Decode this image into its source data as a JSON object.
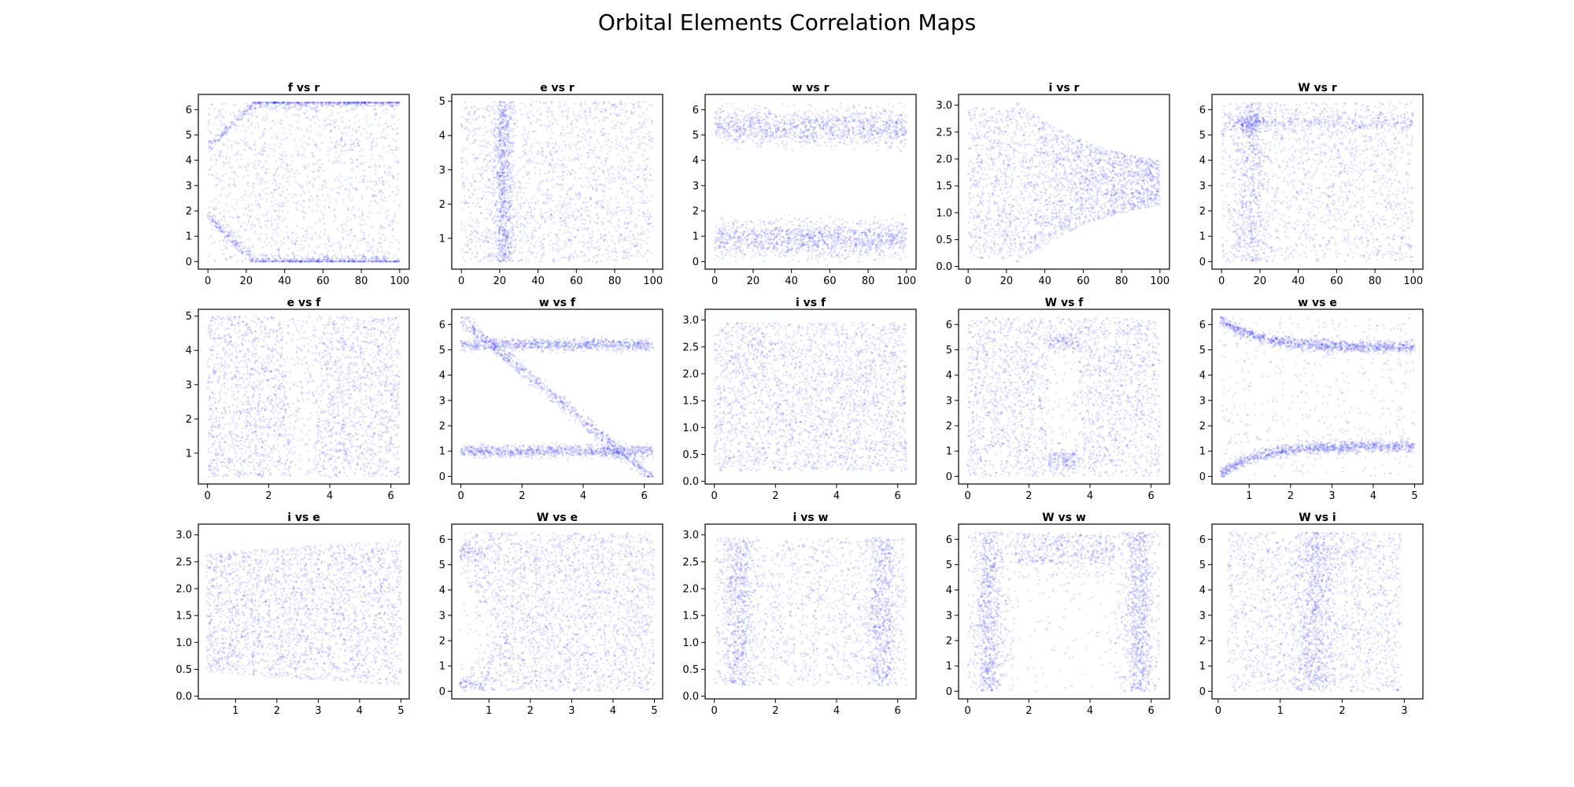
{
  "figure": {
    "title": "Orbital Elements Correlation Maps",
    "point_color": "#0000ee"
  },
  "chart_data": [
    {
      "type": "scatter",
      "title": "f vs r",
      "xlim": [
        -5,
        105
      ],
      "ylim": [
        -0.3,
        6.6
      ],
      "xticks": [
        0,
        20,
        40,
        60,
        80,
        100
      ],
      "yticks": [
        0,
        1,
        2,
        3,
        4,
        5,
        6
      ],
      "x_range": [
        0,
        100
      ],
      "y_range": [
        0,
        6.28
      ],
      "pattern": "fr"
    },
    {
      "type": "scatter",
      "title": "e vs r",
      "xlim": [
        -5,
        105
      ],
      "ylim": [
        0.1,
        5.2
      ],
      "xticks": [
        0,
        20,
        40,
        60,
        80,
        100
      ],
      "yticks": [
        1,
        2,
        3,
        4,
        5
      ],
      "x_range": [
        0,
        100
      ],
      "y_range": [
        0.3,
        5
      ],
      "pattern": "er"
    },
    {
      "type": "scatter",
      "title": "w vs r",
      "xlim": [
        -5,
        105
      ],
      "ylim": [
        -0.3,
        6.6
      ],
      "xticks": [
        0,
        20,
        40,
        60,
        80,
        100
      ],
      "yticks": [
        0,
        1,
        2,
        3,
        4,
        5,
        6
      ],
      "x_range": [
        0,
        100
      ],
      "y_range": [
        0,
        6.28
      ],
      "pattern": "wr"
    },
    {
      "type": "scatter",
      "title": "i vs r",
      "xlim": [
        -5,
        105
      ],
      "ylim": [
        -0.05,
        3.2
      ],
      "xticks": [
        0,
        20,
        40,
        60,
        80,
        100
      ],
      "yticks": [
        0.0,
        0.5,
        1.0,
        1.5,
        2.0,
        2.5,
        3.0
      ],
      "tick_decimals": 1,
      "x_range": [
        0,
        100
      ],
      "y_range": [
        0.1,
        3.05
      ],
      "pattern": "ir"
    },
    {
      "type": "scatter",
      "title": "W vs r",
      "xlim": [
        -5,
        105
      ],
      "ylim": [
        -0.3,
        6.6
      ],
      "xticks": [
        0,
        20,
        40,
        60,
        80,
        100
      ],
      "yticks": [
        0,
        1,
        2,
        3,
        4,
        5,
        6
      ],
      "x_range": [
        0,
        100
      ],
      "y_range": [
        0,
        6.28
      ],
      "pattern": "Wr"
    },
    {
      "type": "scatter",
      "title": "e vs f",
      "xlim": [
        -0.3,
        6.6
      ],
      "ylim": [
        0.1,
        5.2
      ],
      "xticks": [
        0,
        2,
        4,
        6
      ],
      "yticks": [
        1,
        2,
        3,
        4,
        5
      ],
      "x_range": [
        0,
        6.28
      ],
      "y_range": [
        0.3,
        5
      ],
      "pattern": "ef"
    },
    {
      "type": "scatter",
      "title": "w vs f",
      "xlim": [
        -0.3,
        6.6
      ],
      "ylim": [
        -0.3,
        6.6
      ],
      "xticks": [
        0,
        2,
        4,
        6
      ],
      "yticks": [
        0,
        1,
        2,
        3,
        4,
        5,
        6
      ],
      "x_range": [
        0,
        6.28
      ],
      "y_range": [
        0,
        6.28
      ],
      "pattern": "wf"
    },
    {
      "type": "scatter",
      "title": "i vs f",
      "xlim": [
        -0.3,
        6.6
      ],
      "ylim": [
        -0.05,
        3.2
      ],
      "xticks": [
        0,
        2,
        4,
        6
      ],
      "yticks": [
        0.0,
        0.5,
        1.0,
        1.5,
        2.0,
        2.5,
        3.0
      ],
      "tick_decimals": 1,
      "x_range": [
        0,
        6.28
      ],
      "y_range": [
        0.2,
        2.95
      ],
      "pattern": "if"
    },
    {
      "type": "scatter",
      "title": "W vs f",
      "xlim": [
        -0.3,
        6.6
      ],
      "ylim": [
        -0.3,
        6.6
      ],
      "xticks": [
        0,
        2,
        4,
        6
      ],
      "yticks": [
        0,
        1,
        2,
        3,
        4,
        5,
        6
      ],
      "x_range": [
        0,
        6.28
      ],
      "y_range": [
        0,
        6.28
      ],
      "pattern": "Wf"
    },
    {
      "type": "scatter",
      "title": "w vs e",
      "xlim": [
        0.1,
        5.2
      ],
      "ylim": [
        -0.3,
        6.6
      ],
      "xticks": [
        1,
        2,
        3,
        4,
        5
      ],
      "yticks": [
        0,
        1,
        2,
        3,
        4,
        5,
        6
      ],
      "x_range": [
        0.3,
        5
      ],
      "y_range": [
        0,
        6.28
      ],
      "pattern": "we"
    },
    {
      "type": "scatter",
      "title": "i vs e",
      "xlim": [
        0.1,
        5.2
      ],
      "ylim": [
        -0.05,
        3.2
      ],
      "xticks": [
        1,
        2,
        3,
        4,
        5
      ],
      "yticks": [
        0.0,
        0.5,
        1.0,
        1.5,
        2.0,
        2.5,
        3.0
      ],
      "tick_decimals": 1,
      "x_range": [
        0.3,
        5
      ],
      "y_range": [
        0.2,
        2.95
      ],
      "pattern": "ie"
    },
    {
      "type": "scatter",
      "title": "W vs e",
      "xlim": [
        0.1,
        5.2
      ],
      "ylim": [
        -0.3,
        6.6
      ],
      "xticks": [
        1,
        2,
        3,
        4,
        5
      ],
      "yticks": [
        0,
        1,
        2,
        3,
        4,
        5,
        6
      ],
      "x_range": [
        0.3,
        5
      ],
      "y_range": [
        0,
        6.28
      ],
      "pattern": "We"
    },
    {
      "type": "scatter",
      "title": "i vs w",
      "xlim": [
        -0.3,
        6.6
      ],
      "ylim": [
        -0.05,
        3.2
      ],
      "xticks": [
        0,
        2,
        4,
        6
      ],
      "yticks": [
        0.0,
        0.5,
        1.0,
        1.5,
        2.0,
        2.5,
        3.0
      ],
      "tick_decimals": 1,
      "x_range": [
        0,
        6.28
      ],
      "y_range": [
        0.2,
        2.95
      ],
      "pattern": "iw"
    },
    {
      "type": "scatter",
      "title": "W vs w",
      "xlim": [
        -0.3,
        6.6
      ],
      "ylim": [
        -0.3,
        6.6
      ],
      "xticks": [
        0,
        2,
        4,
        6
      ],
      "yticks": [
        0,
        1,
        2,
        3,
        4,
        5,
        6
      ],
      "x_range": [
        0,
        6.28
      ],
      "y_range": [
        0,
        6.28
      ],
      "pattern": "Ww"
    },
    {
      "type": "scatter",
      "title": "W vs i",
      "xlim": [
        -0.1,
        3.3
      ],
      "ylim": [
        -0.3,
        6.6
      ],
      "xticks": [
        0,
        1,
        2,
        3
      ],
      "yticks": [
        0,
        1,
        2,
        3,
        4,
        5,
        6
      ],
      "x_range": [
        0.15,
        2.95
      ],
      "y_range": [
        0,
        6.28
      ],
      "pattern": "Wi"
    }
  ]
}
